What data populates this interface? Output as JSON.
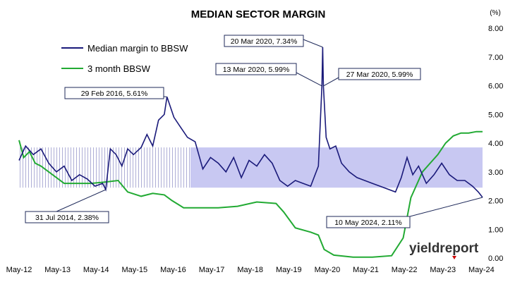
{
  "chart_data": {
    "type": "line",
    "title": "MEDIAN SECTOR MARGIN",
    "unit_label": "(%)",
    "ylim": [
      0,
      8
    ],
    "y_ticks": [
      "0.00",
      "1.00",
      "2.00",
      "3.00",
      "4.00",
      "5.00",
      "6.00",
      "7.00",
      "8.00"
    ],
    "x_ticks": [
      "May-12",
      "May-13",
      "May-14",
      "May-15",
      "May-16",
      "May-17",
      "May-18",
      "May-19",
      "May-20",
      "May-21",
      "May-22",
      "May-23",
      "May-24"
    ],
    "band": {
      "lower": 2.45,
      "upper": 3.85,
      "color_hatched": "#9999cc",
      "color_filled": "#c8c8f2"
    },
    "series": [
      {
        "name": "Median margin to BBSW",
        "color": "#1a1a7a",
        "points": [
          [
            2012.33,
            3.4
          ],
          [
            2012.5,
            3.9
          ],
          [
            2012.7,
            3.6
          ],
          [
            2012.9,
            3.8
          ],
          [
            2013.1,
            3.3
          ],
          [
            2013.3,
            3.0
          ],
          [
            2013.5,
            3.2
          ],
          [
            2013.7,
            2.7
          ],
          [
            2013.9,
            2.9
          ],
          [
            2014.1,
            2.75
          ],
          [
            2014.3,
            2.5
          ],
          [
            2014.5,
            2.6
          ],
          [
            2014.58,
            2.38
          ],
          [
            2014.7,
            3.8
          ],
          [
            2014.85,
            3.6
          ],
          [
            2015.0,
            3.2
          ],
          [
            2015.15,
            3.8
          ],
          [
            2015.3,
            3.6
          ],
          [
            2015.5,
            3.85
          ],
          [
            2015.65,
            4.3
          ],
          [
            2015.8,
            3.9
          ],
          [
            2015.95,
            4.8
          ],
          [
            2016.1,
            5.0
          ],
          [
            2016.17,
            5.61
          ],
          [
            2016.35,
            4.9
          ],
          [
            2016.5,
            4.6
          ],
          [
            2016.7,
            4.2
          ],
          [
            2016.9,
            4.05
          ],
          [
            2017.1,
            3.1
          ],
          [
            2017.3,
            3.5
          ],
          [
            2017.5,
            3.3
          ],
          [
            2017.7,
            3.0
          ],
          [
            2017.9,
            3.5
          ],
          [
            2018.1,
            2.8
          ],
          [
            2018.3,
            3.4
          ],
          [
            2018.5,
            3.2
          ],
          [
            2018.7,
            3.6
          ],
          [
            2018.9,
            3.3
          ],
          [
            2019.1,
            2.7
          ],
          [
            2019.3,
            2.5
          ],
          [
            2019.5,
            2.7
          ],
          [
            2019.7,
            2.6
          ],
          [
            2019.9,
            2.5
          ],
          [
            2020.1,
            3.2
          ],
          [
            2020.19,
            5.99
          ],
          [
            2020.21,
            7.34
          ],
          [
            2020.23,
            5.99
          ],
          [
            2020.3,
            4.2
          ],
          [
            2020.4,
            3.8
          ],
          [
            2020.55,
            3.9
          ],
          [
            2020.7,
            3.3
          ],
          [
            2020.9,
            3.0
          ],
          [
            2021.1,
            2.8
          ],
          [
            2021.3,
            2.7
          ],
          [
            2021.5,
            2.6
          ],
          [
            2021.7,
            2.5
          ],
          [
            2021.9,
            2.4
          ],
          [
            2022.1,
            2.3
          ],
          [
            2022.25,
            2.8
          ],
          [
            2022.4,
            3.5
          ],
          [
            2022.55,
            2.9
          ],
          [
            2022.7,
            3.2
          ],
          [
            2022.9,
            2.6
          ],
          [
            2023.1,
            2.9
          ],
          [
            2023.3,
            3.3
          ],
          [
            2023.5,
            2.9
          ],
          [
            2023.7,
            2.7
          ],
          [
            2023.9,
            2.7
          ],
          [
            2024.1,
            2.5
          ],
          [
            2024.25,
            2.3
          ],
          [
            2024.36,
            2.11
          ]
        ]
      },
      {
        "name": "3 month BBSW",
        "color": "#22aa33",
        "points": [
          [
            2012.33,
            4.1
          ],
          [
            2012.45,
            3.5
          ],
          [
            2012.6,
            3.7
          ],
          [
            2012.75,
            3.3
          ],
          [
            2012.9,
            3.2
          ],
          [
            2013.1,
            3.0
          ],
          [
            2013.3,
            2.8
          ],
          [
            2013.5,
            2.6
          ],
          [
            2013.8,
            2.6
          ],
          [
            2014.2,
            2.6
          ],
          [
            2014.6,
            2.65
          ],
          [
            2014.9,
            2.7
          ],
          [
            2015.15,
            2.3
          ],
          [
            2015.5,
            2.15
          ],
          [
            2015.8,
            2.25
          ],
          [
            2016.1,
            2.2
          ],
          [
            2016.3,
            2.0
          ],
          [
            2016.6,
            1.75
          ],
          [
            2017.0,
            1.75
          ],
          [
            2017.5,
            1.75
          ],
          [
            2018.0,
            1.8
          ],
          [
            2018.5,
            1.95
          ],
          [
            2019.0,
            1.9
          ],
          [
            2019.2,
            1.6
          ],
          [
            2019.5,
            1.05
          ],
          [
            2019.9,
            0.9
          ],
          [
            2020.1,
            0.8
          ],
          [
            2020.25,
            0.3
          ],
          [
            2020.5,
            0.1
          ],
          [
            2021.0,
            0.03
          ],
          [
            2021.5,
            0.03
          ],
          [
            2022.0,
            0.08
          ],
          [
            2022.3,
            0.7
          ],
          [
            2022.5,
            2.1
          ],
          [
            2022.8,
            3.0
          ],
          [
            2023.0,
            3.3
          ],
          [
            2023.2,
            3.6
          ],
          [
            2023.4,
            4.0
          ],
          [
            2023.6,
            4.25
          ],
          [
            2023.8,
            4.35
          ],
          [
            2024.0,
            4.35
          ],
          [
            2024.2,
            4.4
          ],
          [
            2024.36,
            4.4
          ]
        ]
      }
    ],
    "annotations": [
      {
        "text": "29 Feb 2016,  5.61%",
        "x": 2016.17,
        "y": 5.61
      },
      {
        "text": "31 Jul 2014,  2.38%",
        "x": 2014.58,
        "y": 2.38
      },
      {
        "text": "20 Mar 2020,  7.34%",
        "x": 2020.21,
        "y": 7.34
      },
      {
        "text": "13 Mar 2020,  5.99%",
        "x": 2020.19,
        "y": 5.99
      },
      {
        "text": "27 Mar 2020,  5.99%",
        "x": 2020.23,
        "y": 5.99
      },
      {
        "text": "10 May 2024,  2.11%",
        "x": 2024.36,
        "y": 2.11
      }
    ],
    "legend_placement": "top-left",
    "grid": false
  },
  "logo": {
    "text": "yieldreport",
    "accent": "#cc0000"
  }
}
